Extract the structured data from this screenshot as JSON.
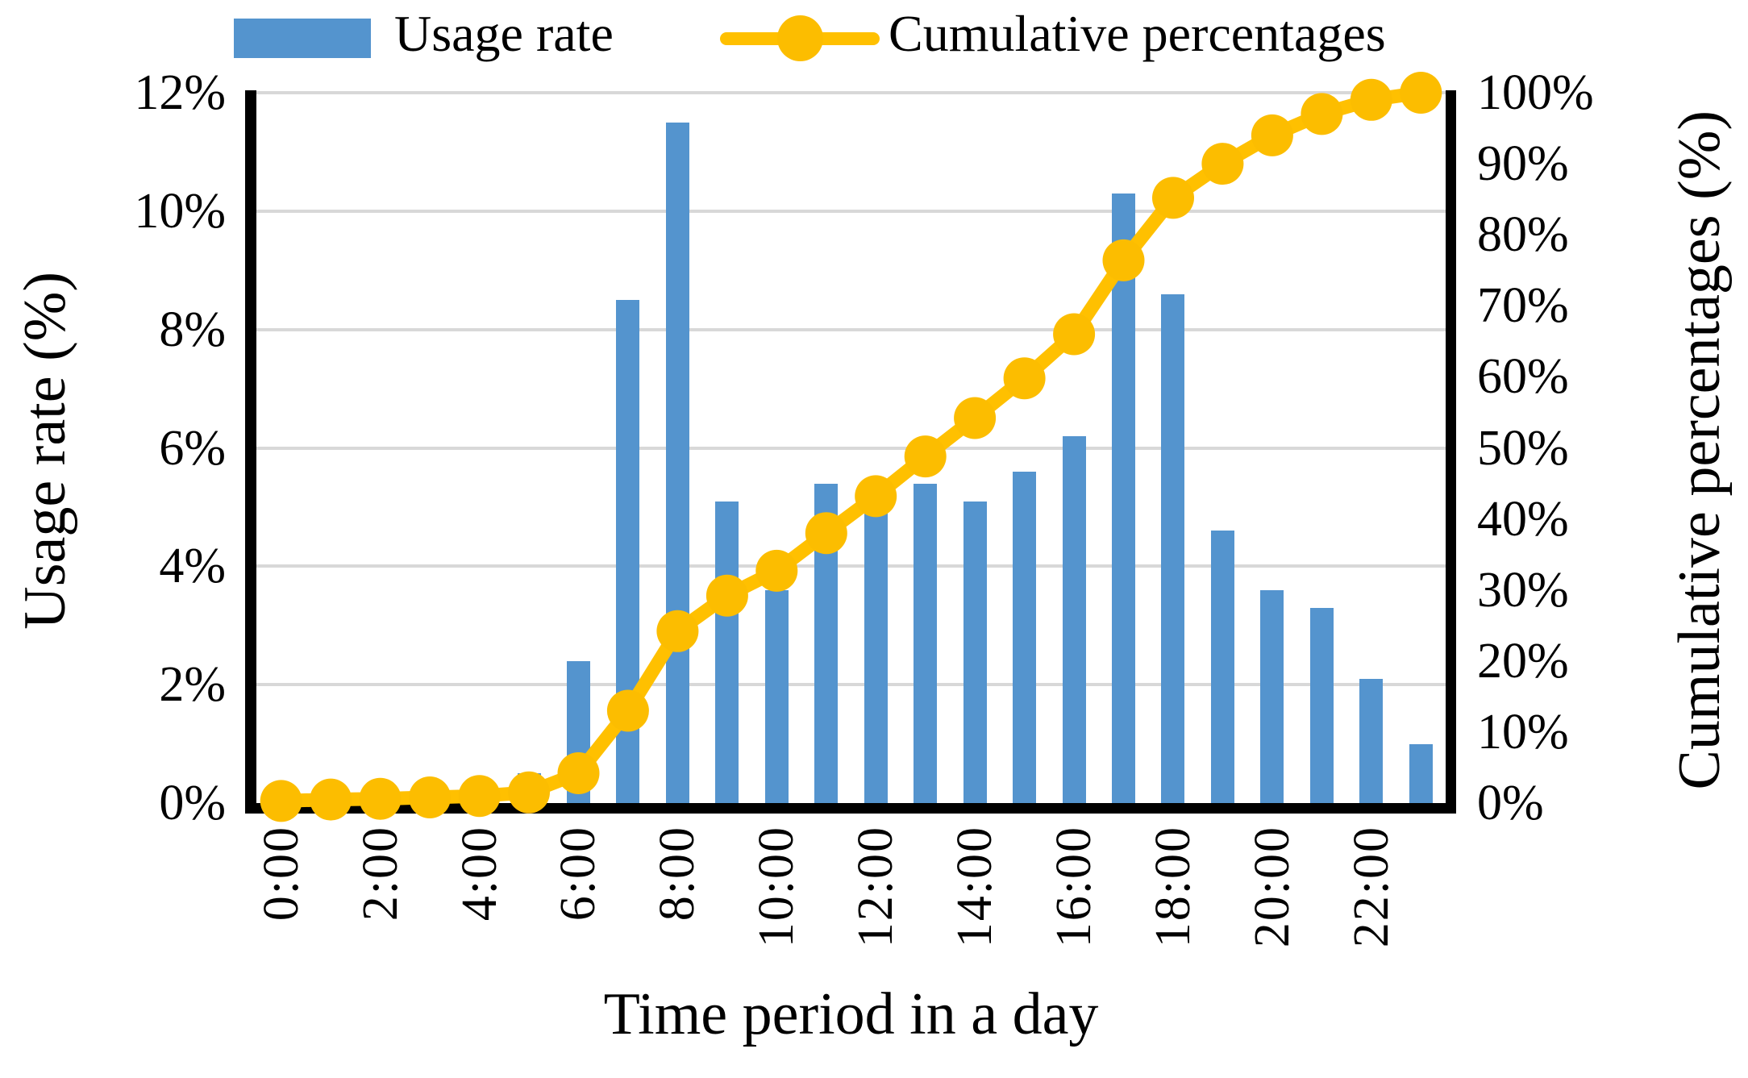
{
  "colors": {
    "bar": "#5494CE",
    "line": "#FFC000",
    "marker": "#FCBD00",
    "grid": "#D8D8D8",
    "axis": "#000000",
    "background": "#FFFFFF"
  },
  "legend": {
    "items": [
      {
        "label": "Usage rate",
        "type": "bar-swatch"
      },
      {
        "label": "Cumulative percentages",
        "type": "line-marker"
      }
    ]
  },
  "chart_data": {
    "type": "combo-bar-line",
    "title": "",
    "categories": [
      "0:00",
      "1:00",
      "2:00",
      "3:00",
      "4:00",
      "5:00",
      "6:00",
      "7:00",
      "8:00",
      "9:00",
      "10:00",
      "11:00",
      "12:00",
      "13:00",
      "14:00",
      "15:00",
      "16:00",
      "17:00",
      "18:00",
      "19:00",
      "20:00",
      "21:00",
      "22:00",
      "23:00"
    ],
    "x_axis": {
      "title": "Time period in a day",
      "tick_labels": [
        "0:00",
        "2:00",
        "4:00",
        "6:00",
        "8:00",
        "10:00",
        "12:00",
        "14:00",
        "16:00",
        "18:00",
        "20:00",
        "22:00"
      ]
    },
    "left_axis": {
      "title": "Usage rate (%)",
      "ticks": [
        "12%",
        "10%",
        "8%",
        "6%",
        "4%",
        "2%",
        "0%"
      ],
      "range": [
        0,
        12
      ]
    },
    "right_axis": {
      "title": "Cumulative percentages (%)",
      "ticks": [
        "100%",
        "90%",
        "80%",
        "70%",
        "60%",
        "50%",
        "40%",
        "30%",
        "20%",
        "10%",
        "0%"
      ],
      "range": [
        0,
        100
      ]
    },
    "grid": true,
    "legend_position": "top",
    "series": [
      {
        "name": "Usage rate",
        "type": "bar",
        "axis": "left",
        "color": "#5494CE",
        "values": [
          0.3,
          0.2,
          0.1,
          0.2,
          0.2,
          0.5,
          2.4,
          8.5,
          11.5,
          5.1,
          3.6,
          5.4,
          4.9,
          5.4,
          5.1,
          5.6,
          6.2,
          10.3,
          8.6,
          4.6,
          3.6,
          3.3,
          2.1,
          1.0
        ]
      },
      {
        "name": "Cumulative percentages",
        "type": "line",
        "axis": "right",
        "color": "#FFC000",
        "values": [
          0.3,
          0.5,
          0.6,
          0.8,
          1.0,
          1.5,
          4.2,
          13.0,
          24.2,
          29.2,
          32.7,
          38.0,
          43.2,
          48.8,
          54.2,
          59.8,
          66.0,
          76.4,
          85.2,
          90.0,
          94.0,
          97.0,
          99.0,
          100.0
        ]
      }
    ]
  }
}
